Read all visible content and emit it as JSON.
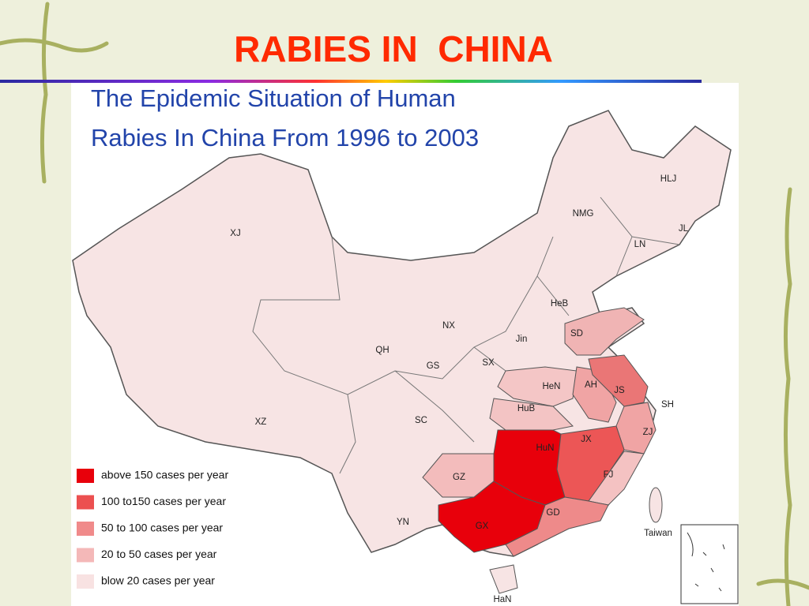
{
  "slide": {
    "title": "RABIES IN  CHINA"
  },
  "map": {
    "title_lines": [
      "The Epidemic Situation of Human",
      "Rabies In China From 1996 to 2003"
    ],
    "base_color": "#f7e4e4",
    "provinces": [
      {
        "label": "XJ"
      },
      {
        "label": "QH"
      },
      {
        "label": "XZ"
      },
      {
        "label": "GS"
      },
      {
        "label": "NX"
      },
      {
        "label": "SX"
      },
      {
        "label": "Jin"
      },
      {
        "label": "HeB"
      },
      {
        "label": "NMG"
      },
      {
        "label": "HLJ"
      },
      {
        "label": "JL"
      },
      {
        "label": "LN"
      },
      {
        "label": "SD",
        "color": "#f0b4b4"
      },
      {
        "label": "HeN",
        "color": "#f4c6c6"
      },
      {
        "label": "AH",
        "color": "#f0a4a4"
      },
      {
        "label": "JS",
        "color": "#ea7676"
      },
      {
        "label": "SH"
      },
      {
        "label": "HuB",
        "color": "#f3c4c4"
      },
      {
        "label": "SC"
      },
      {
        "label": "ZJ",
        "color": "#f0a4a4"
      },
      {
        "label": "HuN",
        "color": "#e8000b"
      },
      {
        "label": "JX",
        "color": "#ec5656"
      },
      {
        "label": "FJ",
        "color": "#f4c2c2"
      },
      {
        "label": "GZ",
        "color": "#f3bcbc"
      },
      {
        "label": "GD",
        "color": "#ee8a8a"
      },
      {
        "label": "GX",
        "color": "#e8000b"
      },
      {
        "label": "YN"
      },
      {
        "label": "Taiwan"
      },
      {
        "label": "HaN"
      }
    ],
    "legend": [
      {
        "label": "above 150 cases per year",
        "color": "#e8000b"
      },
      {
        "label": "100 to150 cases per year",
        "color": "#ec5050"
      },
      {
        "label": "50 to 100 cases per year",
        "color": "#f08a8a"
      },
      {
        "label": "20 to 50 cases per year",
        "color": "#f4b8b8"
      },
      {
        "label": "blow 20 cases per year",
        "color": "#f8e2e2"
      }
    ]
  }
}
